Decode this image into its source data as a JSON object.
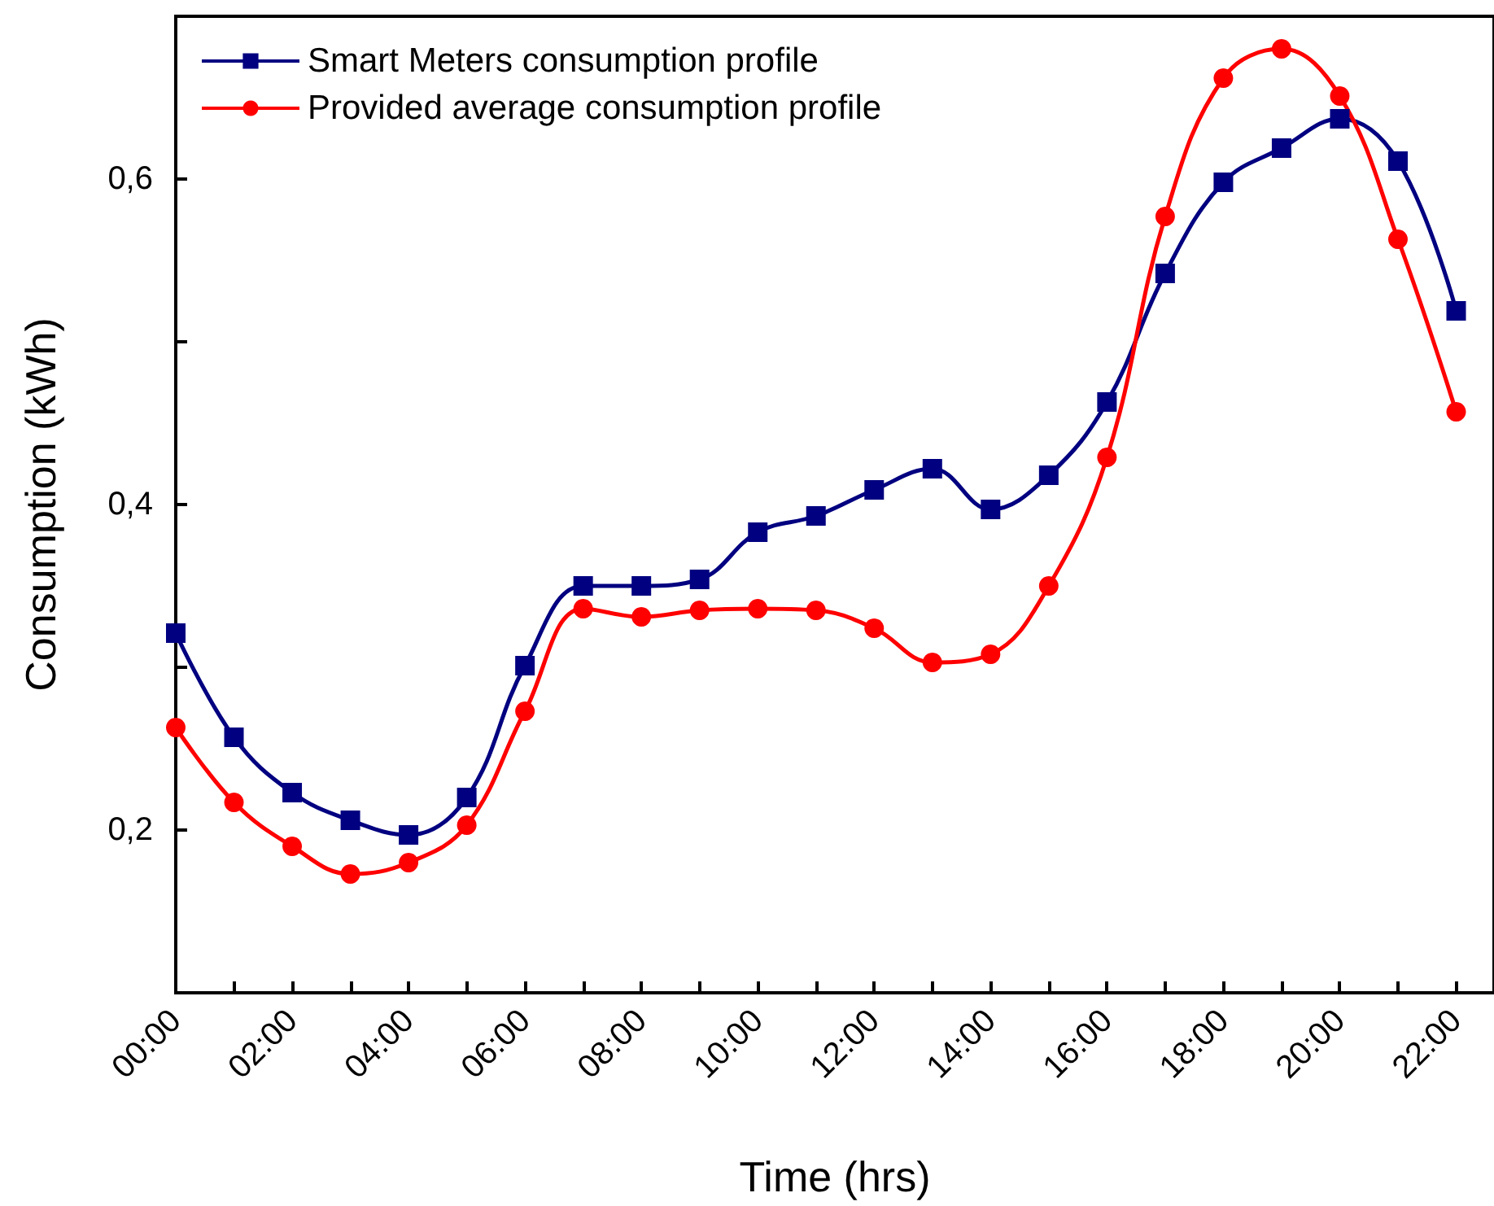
{
  "chart_data": {
    "type": "line",
    "xlabel": "Time (hrs)",
    "ylabel": "Consumption (kWh)",
    "x": [
      0,
      1,
      2,
      3,
      4,
      5,
      6,
      7,
      8,
      9,
      10,
      11,
      12,
      13,
      14,
      15,
      16,
      17,
      18,
      19,
      20,
      21,
      22
    ],
    "series": [
      {
        "name": "Smart Meters consumption profile",
        "color": "#000080",
        "marker": "square",
        "values": [
          0.321,
          0.257,
          0.223,
          0.206,
          0.197,
          0.22,
          0.301,
          0.35,
          0.35,
          0.354,
          0.383,
          0.393,
          0.409,
          0.422,
          0.397,
          0.418,
          0.463,
          0.542,
          0.598,
          0.619,
          0.637,
          0.611,
          0.519
        ]
      },
      {
        "name": "Provided average consumption profile",
        "color": "#ff0000",
        "marker": "circle",
        "values": [
          0.263,
          0.217,
          0.19,
          0.173,
          0.18,
          0.203,
          0.273,
          0.336,
          0.331,
          0.335,
          0.336,
          0.335,
          0.324,
          0.303,
          0.308,
          0.35,
          0.429,
          0.577,
          0.662,
          0.68,
          0.651,
          0.563,
          0.457
        ]
      }
    ],
    "xlim": [
      0,
      22.65
    ],
    "xticks": [
      {
        "value": 0,
        "label": "00:00"
      },
      {
        "value": 1,
        "label": null
      },
      {
        "value": 2,
        "label": "02:00"
      },
      {
        "value": 3,
        "label": null
      },
      {
        "value": 4,
        "label": "04:00"
      },
      {
        "value": 5,
        "label": null
      },
      {
        "value": 6,
        "label": "06:00"
      },
      {
        "value": 7,
        "label": null
      },
      {
        "value": 8,
        "label": "08:00"
      },
      {
        "value": 9,
        "label": null
      },
      {
        "value": 10,
        "label": "10:00"
      },
      {
        "value": 11,
        "label": null
      },
      {
        "value": 12,
        "label": "12:00"
      },
      {
        "value": 13,
        "label": null
      },
      {
        "value": 14,
        "label": "14:00"
      },
      {
        "value": 15,
        "label": null
      },
      {
        "value": 16,
        "label": "16:00"
      },
      {
        "value": 17,
        "label": null
      },
      {
        "value": 18,
        "label": "18:00"
      },
      {
        "value": 19,
        "label": null
      },
      {
        "value": 20,
        "label": "20:00"
      },
      {
        "value": 21,
        "label": null
      },
      {
        "value": 22,
        "label": "22:00"
      }
    ],
    "ylim": [
      0.1,
      0.7
    ],
    "yticks": [
      {
        "value": 0.2,
        "label": "0,2"
      },
      {
        "value": 0.3,
        "label": null
      },
      {
        "value": 0.4,
        "label": "0,4"
      },
      {
        "value": 0.5,
        "label": null
      },
      {
        "value": 0.6,
        "label": "0,6"
      }
    ],
    "grid": false,
    "legend": "top left",
    "line_style": "solid"
  }
}
